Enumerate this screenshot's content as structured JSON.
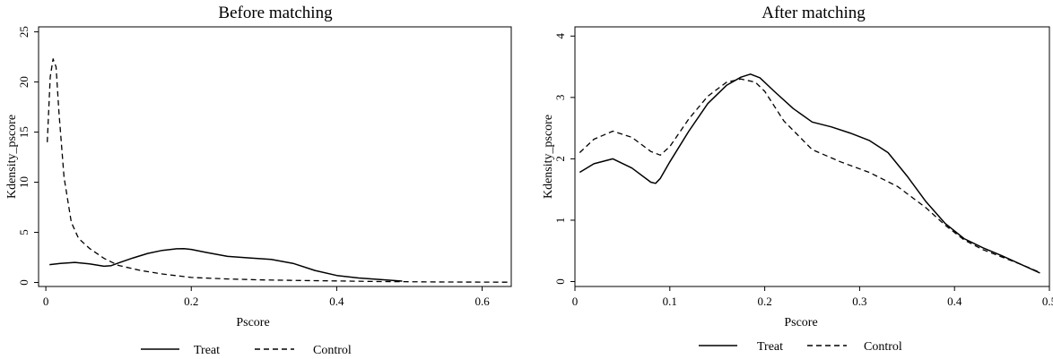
{
  "chart_data": [
    {
      "type": "line",
      "title": "Before matching",
      "xlabel": "Pscore",
      "ylabel": "Kdensity_pscore",
      "xlim": [
        -0.01,
        0.64
      ],
      "ylim": [
        -0.4,
        25.5
      ],
      "xticks": [
        0,
        0.2,
        0.4,
        0.6
      ],
      "yticks": [
        0,
        5,
        10,
        15,
        20,
        25
      ],
      "xtick_labels": [
        "0",
        "0.2",
        "0.4",
        "0.6"
      ],
      "ytick_labels": [
        "0",
        "5",
        "10",
        "15",
        "20",
        "25"
      ],
      "grid": false,
      "legend": "bottom-center",
      "series": [
        {
          "name": "Treat",
          "style": "solid",
          "x": [
            0.005,
            0.02,
            0.04,
            0.06,
            0.08,
            0.09,
            0.1,
            0.12,
            0.14,
            0.16,
            0.18,
            0.19,
            0.2,
            0.22,
            0.25,
            0.28,
            0.31,
            0.34,
            0.37,
            0.4,
            0.43,
            0.46,
            0.49
          ],
          "y": [
            1.78,
            1.9,
            2.0,
            1.85,
            1.62,
            1.68,
            1.95,
            2.45,
            2.9,
            3.2,
            3.36,
            3.38,
            3.3,
            3.0,
            2.6,
            2.45,
            2.3,
            1.9,
            1.2,
            0.7,
            0.45,
            0.3,
            0.14
          ]
        },
        {
          "name": "Control",
          "style": "dashed",
          "x": [
            0.002,
            0.006,
            0.01,
            0.014,
            0.018,
            0.025,
            0.035,
            0.045,
            0.06,
            0.08,
            0.1,
            0.13,
            0.16,
            0.2,
            0.25,
            0.3,
            0.35,
            0.4,
            0.45,
            0.5,
            0.55,
            0.6,
            0.635
          ],
          "y": [
            14.0,
            20.5,
            22.3,
            21.5,
            17.0,
            10.5,
            6.0,
            4.4,
            3.4,
            2.4,
            1.7,
            1.2,
            0.85,
            0.5,
            0.35,
            0.25,
            0.2,
            0.15,
            0.1,
            0.07,
            0.05,
            0.04,
            0.03
          ]
        }
      ]
    },
    {
      "type": "line",
      "title": "After matching",
      "xlabel": "Pscore",
      "ylabel": "Kdensity_pscore",
      "xlim": [
        0.0,
        0.5
      ],
      "ylim": [
        -0.08,
        4.15
      ],
      "xticks": [
        0,
        0.1,
        0.2,
        0.3,
        0.4,
        0.5
      ],
      "yticks": [
        0,
        1,
        2,
        3,
        4
      ],
      "xtick_labels": [
        "0",
        "0.1",
        "0.2",
        "0.3",
        "0.4",
        "0.5"
      ],
      "ytick_labels": [
        "0",
        "1",
        "2",
        "3",
        "4"
      ],
      "grid": false,
      "legend": "bottom-center",
      "series": [
        {
          "name": "Treat",
          "style": "solid",
          "x": [
            0.005,
            0.02,
            0.04,
            0.06,
            0.08,
            0.085,
            0.09,
            0.1,
            0.12,
            0.14,
            0.16,
            0.175,
            0.185,
            0.195,
            0.21,
            0.23,
            0.25,
            0.27,
            0.29,
            0.31,
            0.33,
            0.35,
            0.37,
            0.39,
            0.41,
            0.43,
            0.45,
            0.47,
            0.49
          ],
          "y": [
            1.78,
            1.92,
            2.0,
            1.85,
            1.62,
            1.6,
            1.68,
            1.95,
            2.45,
            2.9,
            3.2,
            3.33,
            3.38,
            3.32,
            3.1,
            2.82,
            2.6,
            2.52,
            2.42,
            2.3,
            2.1,
            1.72,
            1.3,
            0.95,
            0.7,
            0.55,
            0.42,
            0.28,
            0.14
          ]
        },
        {
          "name": "Control",
          "style": "dashed",
          "x": [
            0.005,
            0.02,
            0.04,
            0.06,
            0.08,
            0.09,
            0.1,
            0.12,
            0.14,
            0.16,
            0.175,
            0.19,
            0.2,
            0.22,
            0.25,
            0.28,
            0.31,
            0.34,
            0.37,
            0.39,
            0.41,
            0.43,
            0.45,
            0.47,
            0.49
          ],
          "y": [
            2.1,
            2.32,
            2.45,
            2.35,
            2.12,
            2.06,
            2.2,
            2.65,
            3.02,
            3.25,
            3.3,
            3.25,
            3.1,
            2.62,
            2.15,
            1.95,
            1.78,
            1.55,
            1.2,
            0.92,
            0.68,
            0.52,
            0.4,
            0.28,
            0.15
          ]
        }
      ]
    }
  ]
}
